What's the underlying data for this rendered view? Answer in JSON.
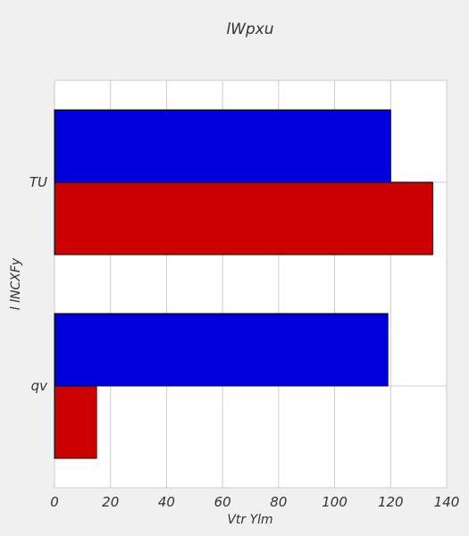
{
  "chart_data": {
    "type": "bar",
    "orientation": "horizontal",
    "title": "lWpxu",
    "xlabel": "Vtr Ylm",
    "ylabel": "l lNCXFy",
    "categories": [
      "TU",
      "qv"
    ],
    "series": [
      {
        "color": "#0000dd",
        "values": [
          120,
          119
        ]
      },
      {
        "color": "#cc0000",
        "values": [
          135,
          15
        ]
      }
    ],
    "xlim": [
      0,
      140
    ],
    "xticks": [
      "0",
      "20",
      "40",
      "60",
      "80",
      "100",
      "120",
      "140"
    ],
    "grid": true,
    "background": "#f0f0f0",
    "plot_background": "#ffffff"
  }
}
